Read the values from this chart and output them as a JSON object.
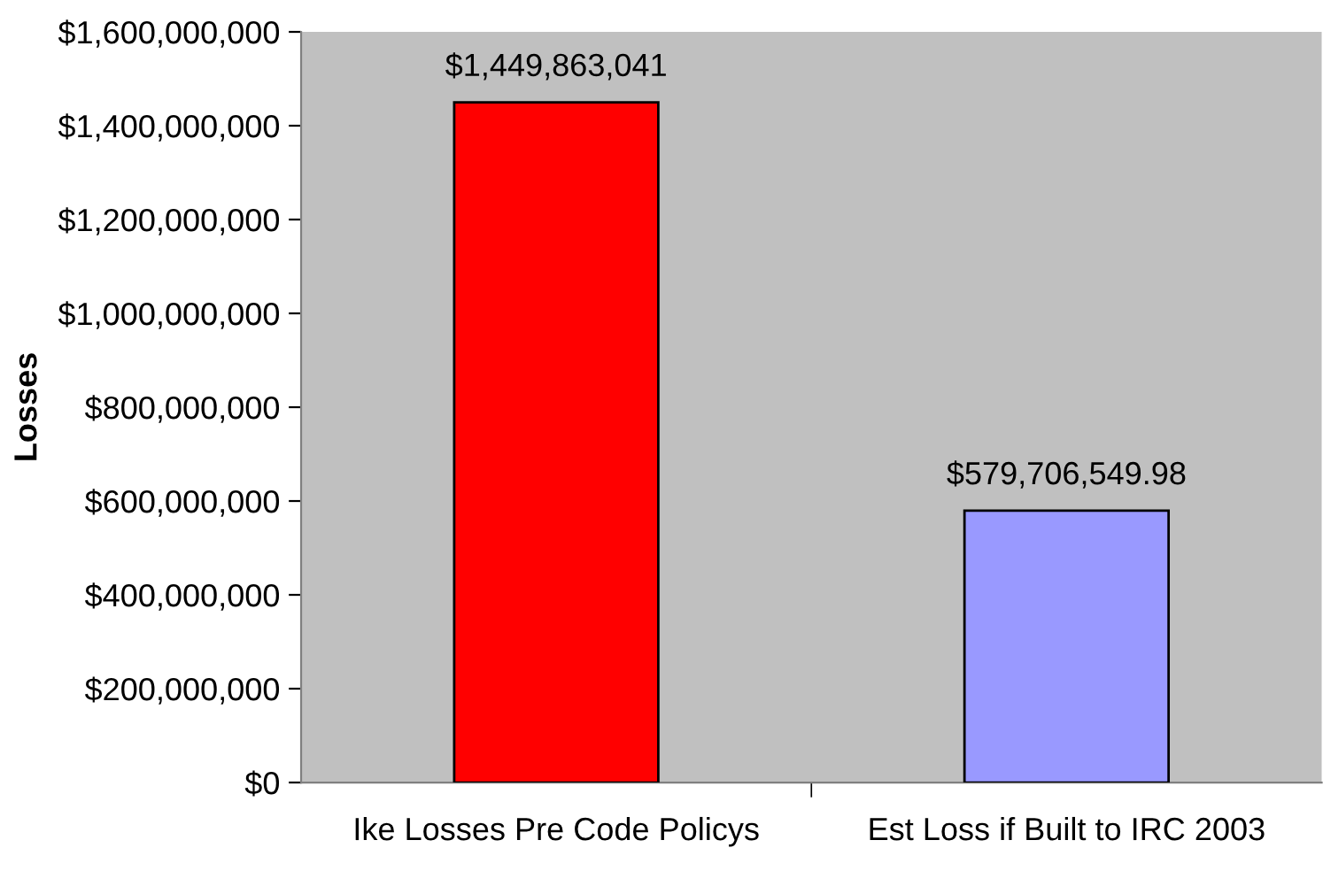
{
  "chart_data": {
    "type": "bar",
    "ylabel": "Losses",
    "categories": [
      "Ike Losses Pre Code Policys",
      "Est Loss if Built to IRC 2003"
    ],
    "values": [
      1449863041,
      579706549.98
    ],
    "colors": [
      "#ff0000",
      "#9999ff"
    ],
    "value_labels": [
      "$1,449,863,041",
      "$579,706,549.98"
    ],
    "ylim": [
      0,
      1600000000
    ],
    "yticks": [
      {
        "value": 0,
        "label": "$0"
      },
      {
        "value": 200000000,
        "label": "$200,000,000"
      },
      {
        "value": 400000000,
        "label": "$400,000,000"
      },
      {
        "value": 600000000,
        "label": "$600,000,000"
      },
      {
        "value": 800000000,
        "label": "$800,000,000"
      },
      {
        "value": 1000000000,
        "label": "$1,000,000,000"
      },
      {
        "value": 1200000000,
        "label": "$1,200,000,000"
      },
      {
        "value": 1400000000,
        "label": "$1,400,000,000"
      },
      {
        "value": 1600000000,
        "label": "$1,600,000,000"
      }
    ],
    "grid": false
  }
}
